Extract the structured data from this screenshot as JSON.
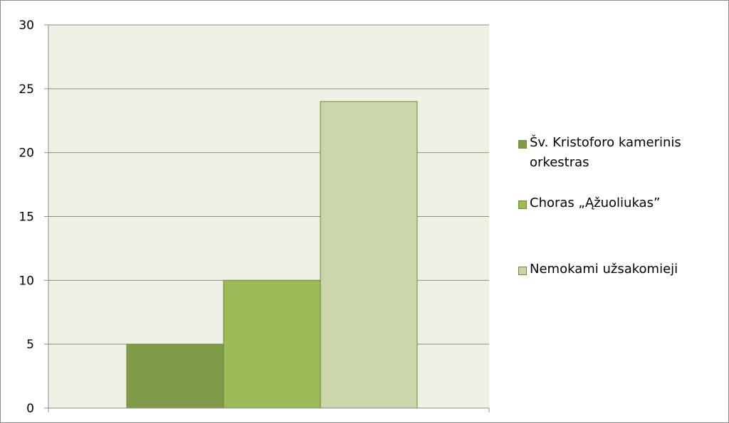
{
  "chart_data": {
    "type": "bar",
    "title": "",
    "xlabel": "",
    "ylabel": "",
    "ylim": [
      0,
      30
    ],
    "y_ticks": [
      "0",
      "5",
      "10",
      "15",
      "20",
      "25",
      "30"
    ],
    "grid": true,
    "legend_position": "right",
    "categories": [
      ""
    ],
    "series": [
      {
        "name": "Šv. Kristoforo kamerinis orkestras",
        "values": [
          5
        ],
        "color": "#7f9a48"
      },
      {
        "name": "Choras „Ąžuoliukas”",
        "values": [
          10
        ],
        "color": "#9bbb59"
      },
      {
        "name": "Nemokami užsakomieji",
        "values": [
          24
        ],
        "color": "#c9d6ab"
      }
    ],
    "plot_background": "#eef1e3",
    "bar_border_color": "#6a8a3a",
    "grid_color": "#8c8c8c"
  }
}
